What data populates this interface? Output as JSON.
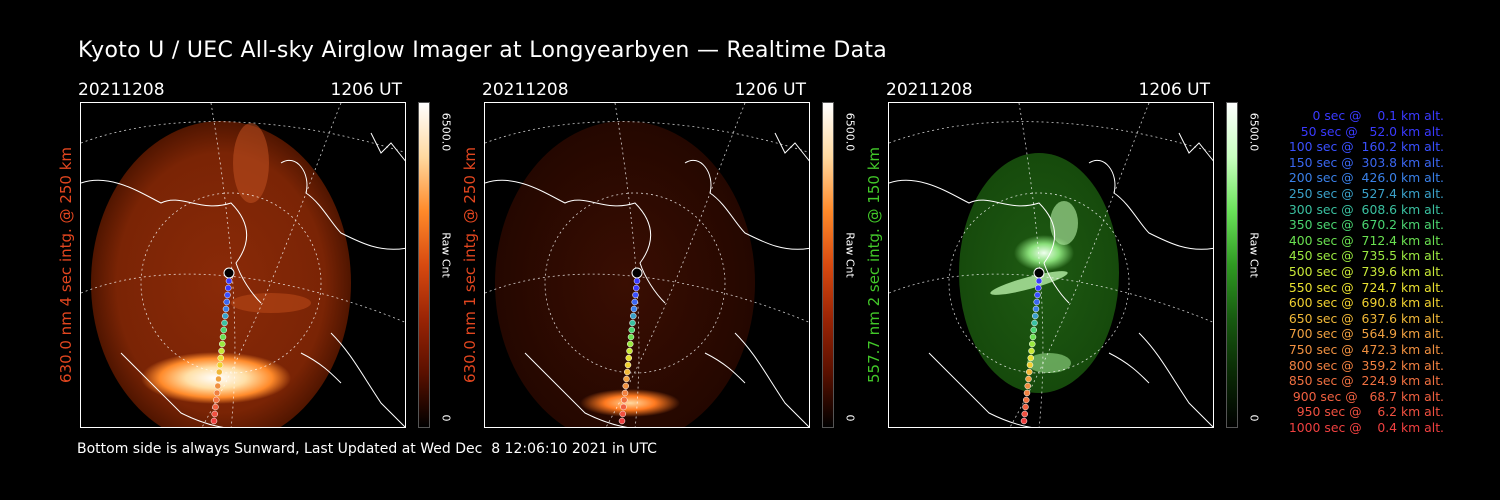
{
  "title": "Kyoto U / UEC All-sky Airglow Imager at Longyearbyen — Realtime Data",
  "footer": "Bottom side is always Sunward, Last Updated at Wed Dec  8 12:06:10 2021 in UTC",
  "panels": [
    {
      "date": "20211208",
      "time": "1206 UT",
      "channel_label": "630.0 nm  4 sec intg. @ 250 km",
      "label_color": "#e2461f",
      "colorbar_max": "6500.0",
      "colorbar_unit": "Raw Cnt",
      "colorbar_min": "0",
      "colormap": [
        "#ffffff",
        "#ffd9a0",
        "#ff8a2a",
        "#d84a10",
        "#9a2405",
        "#5a1000",
        "#000000"
      ]
    },
    {
      "date": "20211208",
      "time": "1206 UT",
      "channel_label": "630.0 nm  1 sec intg. @ 250 km",
      "label_color": "#e2461f",
      "colorbar_max": "6500.0",
      "colorbar_unit": "Raw Cnt",
      "colorbar_min": "0",
      "colormap": [
        "#ffffff",
        "#ffd9a0",
        "#ff8a2a",
        "#d84a10",
        "#9a2405",
        "#5a1000",
        "#000000"
      ]
    },
    {
      "date": "20211208",
      "time": "1206 UT",
      "channel_label": "557.7 nm  2 sec intg. @ 150 km",
      "label_color": "#42c829",
      "colorbar_max": "6500.0",
      "colorbar_unit": "Raw Cnt",
      "colorbar_min": "0",
      "colormap": [
        "#ffffff",
        "#c9ffc0",
        "#6ae25a",
        "#2f9a22",
        "#175a10",
        "#0a2a05",
        "#000000"
      ]
    }
  ],
  "legend": [
    {
      "text": "0 sec @    0.1 km alt.",
      "color": "#3a3aff"
    },
    {
      "text": "50 sec @   52.0 km alt.",
      "color": "#3a3aff"
    },
    {
      "text": "100 sec @  160.2 km alt.",
      "color": "#3a50ff"
    },
    {
      "text": "150 sec @  303.8 km alt.",
      "color": "#3a66f0"
    },
    {
      "text": "200 sec @  426.0 km alt.",
      "color": "#3a80e8"
    },
    {
      "text": "250 sec @  527.4 km alt.",
      "color": "#3aa0c8"
    },
    {
      "text": "300 sec @  608.6 km alt.",
      "color": "#3ac0a0"
    },
    {
      "text": "350 sec @  670.2 km alt.",
      "color": "#4ad470"
    },
    {
      "text": "400 sec @  712.4 km alt.",
      "color": "#6ae050"
    },
    {
      "text": "450 sec @  735.5 km alt.",
      "color": "#9ae840"
    },
    {
      "text": "500 sec @  739.6 km alt.",
      "color": "#c8e838"
    },
    {
      "text": "550 sec @  724.7 km alt.",
      "color": "#e8e030"
    },
    {
      "text": "600 sec @  690.8 km alt.",
      "color": "#f0d030"
    },
    {
      "text": "650 sec @  637.6 km alt.",
      "color": "#f0b838"
    },
    {
      "text": "700 sec @  564.9 km alt.",
      "color": "#f0a040"
    },
    {
      "text": "750 sec @  472.3 km alt.",
      "color": "#f09040"
    },
    {
      "text": "800 sec @  359.2 km alt.",
      "color": "#f08040"
    },
    {
      "text": "850 sec @  224.9 km alt.",
      "color": "#f07040"
    },
    {
      "text": "900 sec @   68.7 km alt.",
      "color": "#f06040"
    },
    {
      "text": "950 sec @    6.2 km alt.",
      "color": "#f05040"
    },
    {
      "text": "1000 sec @    0.4 km alt.",
      "color": "#f04040"
    }
  ]
}
